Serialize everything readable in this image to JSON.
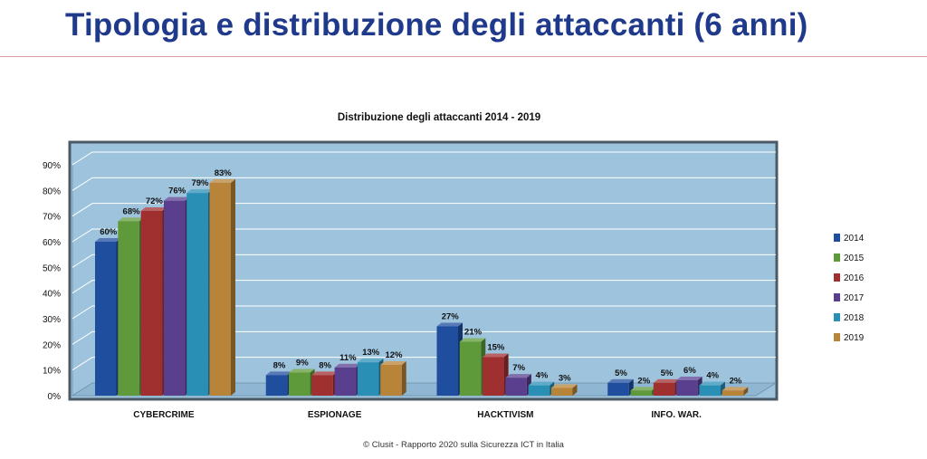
{
  "slide": {
    "title": "Tipologia e distribuzione degli attaccanti (6 anni)",
    "footer": "© Clusit - Rapporto 2020 sulla Sicurezza ICT in Italia"
  },
  "colors": {
    "title": "#1f3a8a",
    "plot_bg": "#9dc3dd",
    "plot_border": "#4a5a66",
    "grid": "#ffffff"
  },
  "chart_data": {
    "type": "bar",
    "title": "Distribuzione degli attaccanti 2014 - 2019",
    "xlabel": "",
    "ylabel": "",
    "ylim": [
      0,
      90
    ],
    "yticks": [
      "0%",
      "10%",
      "20%",
      "30%",
      "40%",
      "50%",
      "60%",
      "70%",
      "80%",
      "90%"
    ],
    "categories": [
      "CYBERCRIME",
      "ESPIONAGE",
      "HACKTIVISM",
      "INFO. WAR."
    ],
    "legend_position": "right",
    "grid": true,
    "series": [
      {
        "name": "2014",
        "color": "#1f4e9e",
        "values": [
          60,
          8,
          27,
          5
        ],
        "labels": [
          "60%",
          "8%",
          "27%",
          "5%"
        ]
      },
      {
        "name": "2015",
        "color": "#5f9a3a",
        "values": [
          68,
          9,
          21,
          2
        ],
        "labels": [
          "68%",
          "9%",
          "21%",
          "2%"
        ]
      },
      {
        "name": "2016",
        "color": "#a03030",
        "values": [
          72,
          8,
          15,
          5
        ],
        "labels": [
          "72%",
          "8%",
          "15%",
          "5%"
        ]
      },
      {
        "name": "2017",
        "color": "#5a3f8f",
        "values": [
          76,
          11,
          7,
          6
        ],
        "labels": [
          "76%",
          "11%",
          "7%",
          "6%"
        ]
      },
      {
        "name": "2018",
        "color": "#2a8fb5",
        "values": [
          79,
          13,
          4,
          4
        ],
        "labels": [
          "79%",
          "13%",
          "4%",
          "4%"
        ]
      },
      {
        "name": "2019",
        "color": "#b8843a",
        "values": [
          83,
          12,
          3,
          2
        ],
        "labels": [
          "83%",
          "12%",
          "3%",
          "2%"
        ]
      }
    ]
  }
}
